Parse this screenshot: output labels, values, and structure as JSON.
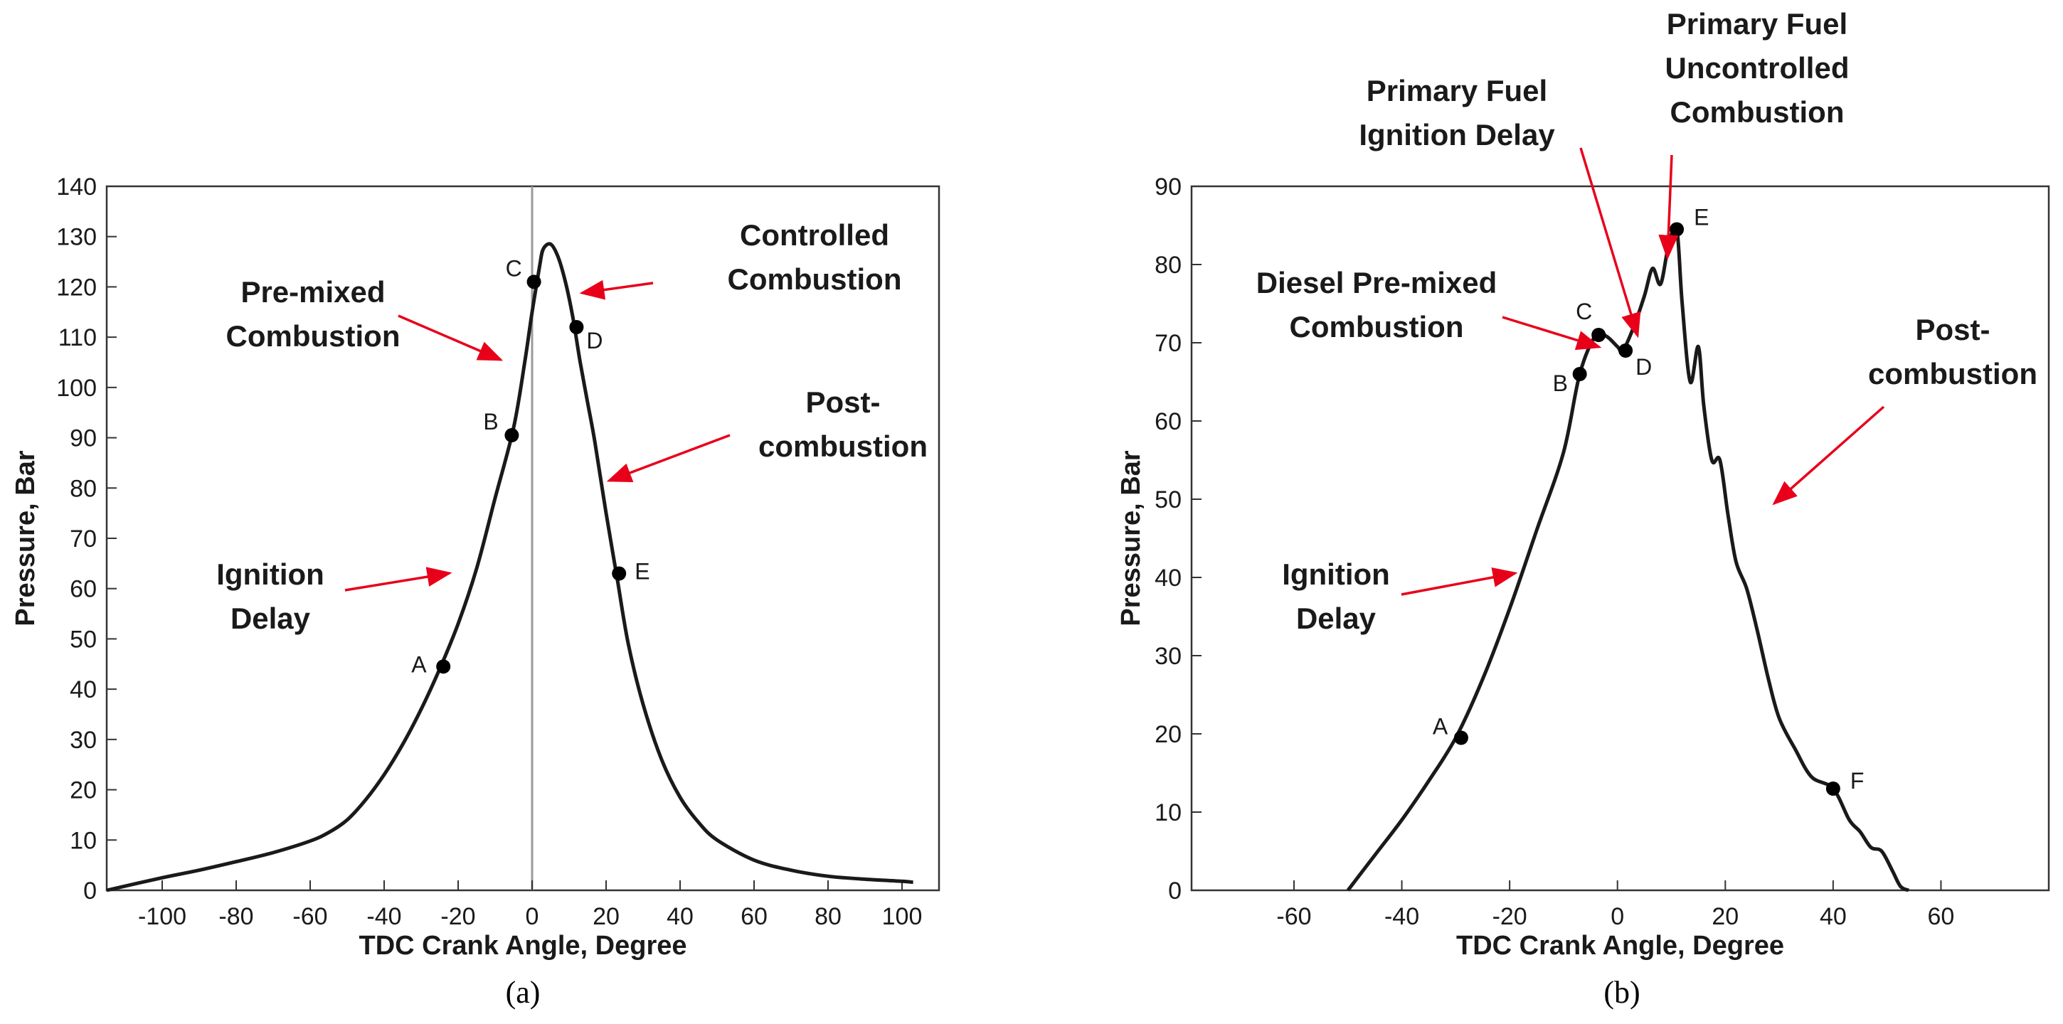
{
  "chart_data": [
    {
      "panel": "(a)",
      "type": "line",
      "caption": "(a)",
      "xlabel": "TDC Crank Angle, Degree",
      "ylabel": "Pressure, Bar",
      "xlim": [
        -115,
        110
      ],
      "ylim": [
        0,
        140
      ],
      "xticks": [
        -100,
        -80,
        -60,
        -40,
        -20,
        0,
        20,
        40,
        60,
        80,
        100
      ],
      "yticks": [
        0,
        10,
        20,
        30,
        40,
        50,
        60,
        70,
        80,
        90,
        100,
        110,
        120,
        130,
        140
      ],
      "grid": false,
      "tdc_line": 0,
      "series": [
        {
          "name": "Pressure",
          "x": [
            -115,
            -100,
            -90,
            -80,
            -70,
            -60,
            -55,
            -50,
            -45,
            -40,
            -35,
            -30,
            -25,
            -20,
            -15,
            -10,
            -5,
            -2,
            0,
            2,
            3,
            5,
            7,
            9,
            11,
            13,
            15,
            17,
            20,
            23,
            26,
            30,
            35,
            40,
            45,
            50,
            60,
            70,
            80,
            90,
            100,
            103
          ],
          "y": [
            0,
            2.5,
            4,
            5.7,
            7.5,
            9.8,
            11.5,
            14,
            18,
            23,
            29,
            36,
            44,
            53,
            64,
            78,
            92,
            105,
            115,
            124,
            127.5,
            128.5,
            126,
            121,
            114,
            105,
            97,
            89,
            75,
            62,
            49,
            37,
            26,
            18.5,
            13.5,
            10,
            6,
            4,
            2.8,
            2.2,
            1.8,
            1.6
          ]
        }
      ],
      "points": [
        {
          "label": "A",
          "x": -24,
          "y": 44.5
        },
        {
          "label": "B",
          "x": -5.5,
          "y": 90.5
        },
        {
          "label": "C",
          "x": 0.5,
          "y": 121
        },
        {
          "label": "D",
          "x": 12,
          "y": 112
        },
        {
          "label": "E",
          "x": 23.5,
          "y": 63
        }
      ],
      "annotations": [
        {
          "lines": [
            "Ignition",
            "Delay"
          ]
        },
        {
          "lines": [
            "Pre-mixed",
            "Combustion"
          ]
        },
        {
          "lines": [
            "Controlled",
            "Combustion"
          ]
        },
        {
          "lines": [
            "Post-",
            "combustion"
          ]
        }
      ]
    },
    {
      "panel": "(b)",
      "type": "line",
      "caption": "(b)",
      "xlabel": "TDC Crank Angle, Degree",
      "ylabel": "Pressure, Bar",
      "xlim": [
        -79,
        80
      ],
      "ylim": [
        0,
        90
      ],
      "xticks": [
        -60,
        -40,
        -20,
        0,
        20,
        40,
        60
      ],
      "yticks": [
        0,
        10,
        20,
        30,
        40,
        50,
        60,
        70,
        80,
        90
      ],
      "grid": false,
      "series": [
        {
          "name": "Pressure",
          "x": [
            -50,
            -45,
            -40,
            -35,
            -30,
            -25,
            -20,
            -15,
            -10,
            -7,
            -4,
            -2,
            0,
            1,
            3,
            5,
            6.5,
            8,
            9.5,
            11,
            12,
            13.5,
            15,
            16,
            17.5,
            19,
            20.5,
            22,
            24,
            26,
            28,
            30,
            33,
            36,
            40,
            43,
            45,
            47,
            49,
            51,
            52.5,
            54
          ],
          "y": [
            0,
            4.5,
            9,
            14,
            19.5,
            27,
            36,
            46,
            56,
            66,
            71,
            70.8,
            69.5,
            69,
            72,
            76,
            79.5,
            77.5,
            82.5,
            84.5,
            75,
            65,
            69.5,
            62,
            55,
            55,
            48,
            42,
            38.5,
            33,
            27,
            22,
            18,
            14.5,
            13,
            9,
            7.5,
            5.5,
            5,
            2.5,
            0.5,
            0
          ]
        }
      ],
      "points": [
        {
          "label": "A",
          "x": -29,
          "y": 19.5
        },
        {
          "label": "B",
          "x": -7,
          "y": 66
        },
        {
          "label": "C",
          "x": -3.5,
          "y": 71
        },
        {
          "label": "D",
          "x": 1.5,
          "y": 69
        },
        {
          "label": "E",
          "x": 11,
          "y": 84.5
        },
        {
          "label": "F",
          "x": 40,
          "y": 13
        }
      ],
      "annotations": [
        {
          "lines": [
            "Ignition",
            "Delay"
          ]
        },
        {
          "lines": [
            "Diesel Pre-mixed",
            "Combustion"
          ]
        },
        {
          "lines": [
            "Primary Fuel",
            "Ignition Delay"
          ]
        },
        {
          "lines": [
            "Primary Fuel",
            "Uncontrolled",
            "Combustion"
          ]
        },
        {
          "lines": [
            "Post-",
            "combustion"
          ]
        }
      ]
    }
  ],
  "colors": {
    "curve": "#1a1a1a",
    "arrow": "#e8001a",
    "tdc_line": "#9a9a9a",
    "frame": "#333333"
  }
}
